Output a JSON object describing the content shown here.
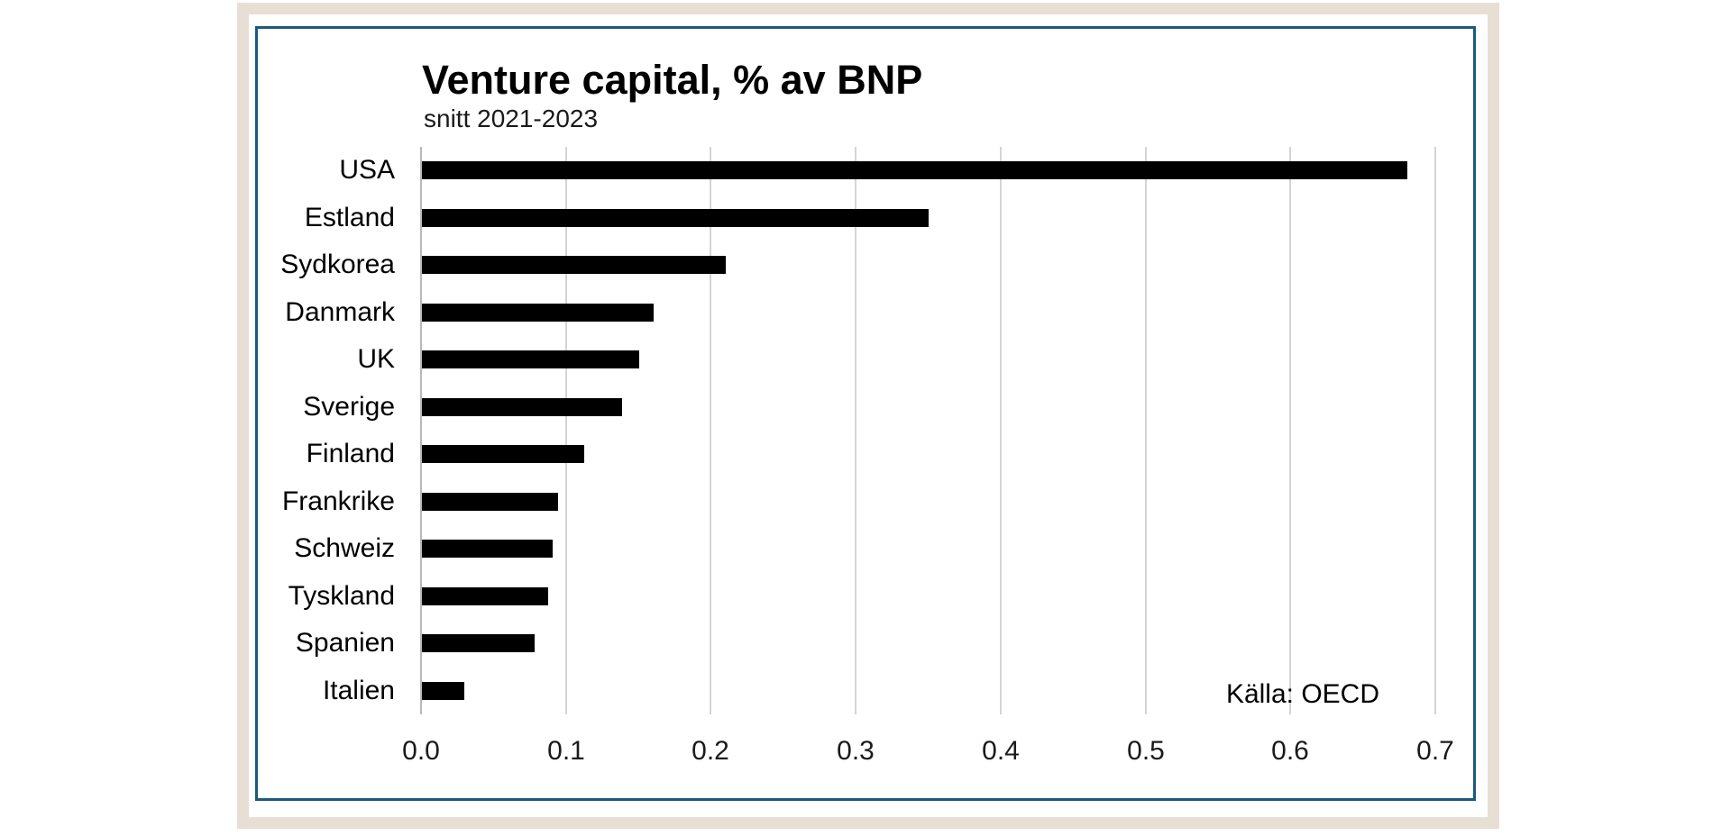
{
  "chart_data": {
    "type": "bar",
    "orientation": "horizontal",
    "title": "Venture capital, % av BNP",
    "subtitle": "snitt 2021-2023",
    "source": "Källa: OECD",
    "categories": [
      "USA",
      "Estland",
      "Sydkorea",
      "Danmark",
      "UK",
      "Sverige",
      "Finland",
      "Frankrike",
      "Schweiz",
      "Tyskland",
      "Spanien",
      "Italien"
    ],
    "values": [
      0.68,
      0.35,
      0.21,
      0.16,
      0.15,
      0.138,
      0.112,
      0.094,
      0.09,
      0.087,
      0.078,
      0.029
    ],
    "xlim": [
      0.0,
      0.7
    ],
    "xticks": [
      0.0,
      0.1,
      0.2,
      0.3,
      0.4,
      0.5,
      0.6,
      0.7
    ],
    "xtick_labels": [
      "0.0",
      "0.1",
      "0.2",
      "0.3",
      "0.4",
      "0.5",
      "0.6",
      "0.7"
    ],
    "grid": true,
    "legend": false,
    "xlabel": "",
    "ylabel": "",
    "colors": {
      "bar": "#000000",
      "gridline": "#d4d4d4",
      "zero_line": "#b8b8b8",
      "text": "#000000",
      "panel_border": "#1b5a7c",
      "outer_frame": "#e7dfd4",
      "background": "#ffffff"
    }
  }
}
